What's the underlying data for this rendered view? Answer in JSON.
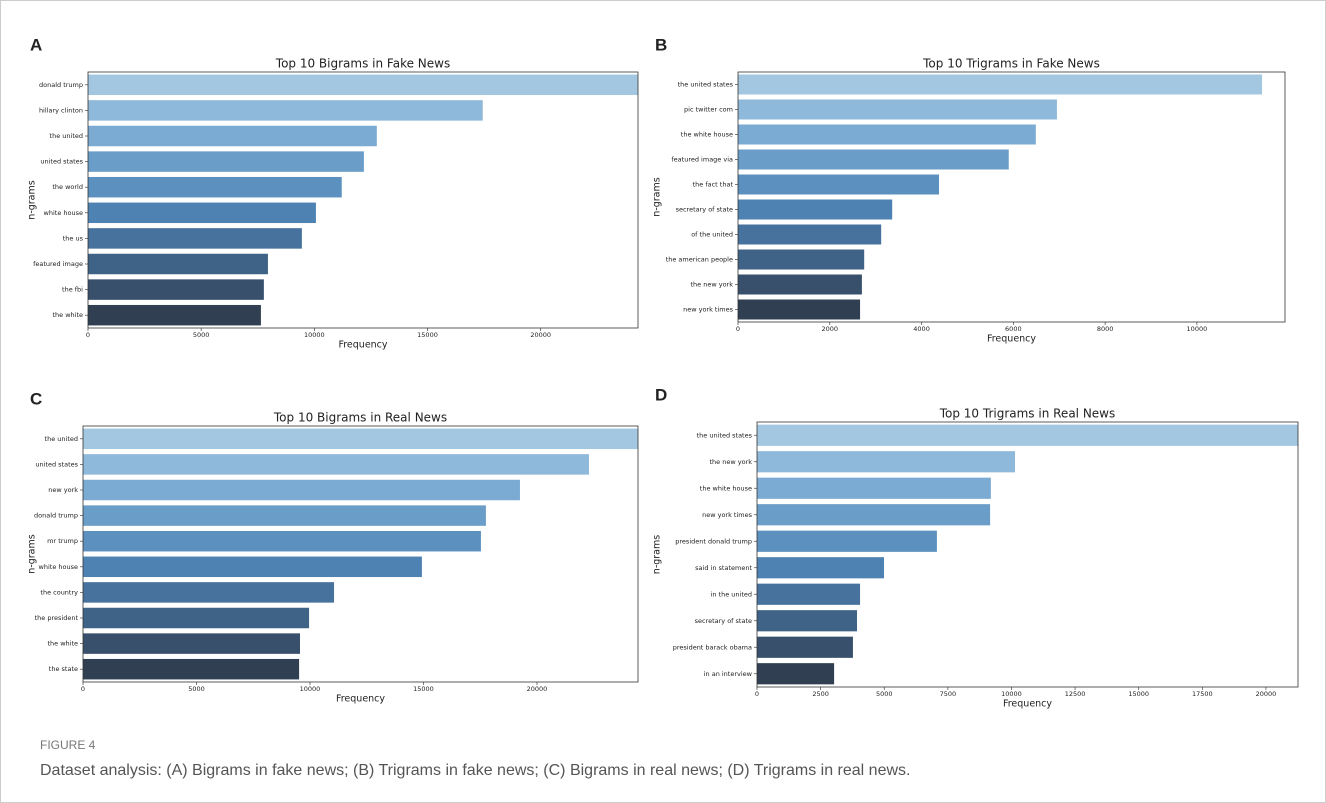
{
  "chart_data": [
    {
      "type": "barh",
      "panel": "A",
      "title": "Top 10 Bigrams in Fake News",
      "xlabel": "Frequency",
      "ylabel": "n-grams",
      "categories": [
        "donald trump",
        "hillary clinton",
        "the united",
        "united states",
        "the world",
        "white house",
        "the us",
        "featured image",
        "the fbi",
        "the white"
      ],
      "values": [
        24300,
        17440,
        12760,
        12190,
        11210,
        10070,
        9450,
        7950,
        7770,
        7640
      ],
      "colors": [
        "#a3c7e1",
        "#8fb9da",
        "#7babd2",
        "#6a9ec9",
        "#5b90bf",
        "#4d82b3",
        "#47729d",
        "#3f6287",
        "#38506c",
        "#303f51"
      ],
      "xlim": [
        0,
        24300
      ],
      "xticks": [
        0,
        5000,
        10000,
        15000,
        20000
      ]
    },
    {
      "type": "barh",
      "panel": "B",
      "title": "Top 10 Trigrams in Fake News",
      "xlabel": "Frequency",
      "ylabel": "n-grams",
      "categories": [
        "the united states",
        "pic twitter com",
        "the white house",
        "featured image via",
        "the fact that",
        "secretary of state",
        "of the united",
        "the american people",
        "the new york",
        "new york times"
      ],
      "values": [
        11420,
        6950,
        6490,
        5900,
        4380,
        3360,
        3120,
        2750,
        2700,
        2660
      ],
      "colors": [
        "#a3c7e1",
        "#8fb9da",
        "#7babd2",
        "#6a9ec9",
        "#5b90bf",
        "#4d82b3",
        "#47729d",
        "#3f6287",
        "#38506c",
        "#303f51"
      ],
      "xlim": [
        0,
        11920
      ],
      "xticks": [
        0,
        2000,
        4000,
        6000,
        8000,
        10000
      ]
    },
    {
      "type": "barh",
      "panel": "C",
      "title": "Top 10 Bigrams in Real News",
      "xlabel": "Frequency",
      "ylabel": "n-grams",
      "categories": [
        "the united",
        "united states",
        "new york",
        "donald trump",
        "mr trump",
        "white house",
        "the country",
        "the president",
        "the white",
        "the state"
      ],
      "values": [
        24450,
        22290,
        19250,
        17750,
        17530,
        14930,
        11060,
        9960,
        9560,
        9520
      ],
      "colors": [
        "#a3c7e1",
        "#8fb9da",
        "#7babd2",
        "#6a9ec9",
        "#5b90bf",
        "#4d82b3",
        "#47729d",
        "#3f6287",
        "#38506c",
        "#303f51"
      ],
      "xlim": [
        0,
        24450
      ],
      "xticks": [
        0,
        5000,
        10000,
        15000,
        20000
      ]
    },
    {
      "type": "barh",
      "panel": "D",
      "title": "Top 10 Trigrams in Real News",
      "xlabel": "Frequency",
      "ylabel": "n-grams",
      "categories": [
        "the united states",
        "the new york",
        "the white house",
        "new york times",
        "president donald trump",
        "said in statement",
        "in the united",
        "secretary of state",
        "president barack obama",
        "in an interview"
      ],
      "values": [
        21260,
        10140,
        9190,
        9160,
        7070,
        4990,
        4050,
        3930,
        3770,
        3030
      ],
      "colors": [
        "#a3c7e1",
        "#8fb9da",
        "#7babd2",
        "#6a9ec9",
        "#5b90bf",
        "#4d82b3",
        "#47729d",
        "#3f6287",
        "#38506c",
        "#303f51"
      ],
      "xlim": [
        0,
        21260
      ],
      "xticks": [
        0,
        2500,
        5000,
        7500,
        10000,
        12500,
        15000,
        17500,
        20000
      ]
    }
  ],
  "figure": {
    "label": "FIGURE 4",
    "caption": "Dataset analysis: (A) Bigrams in fake news; (B) Trigrams in fake news; (C) Bigrams in real news; (D) Trigrams in real news."
  }
}
